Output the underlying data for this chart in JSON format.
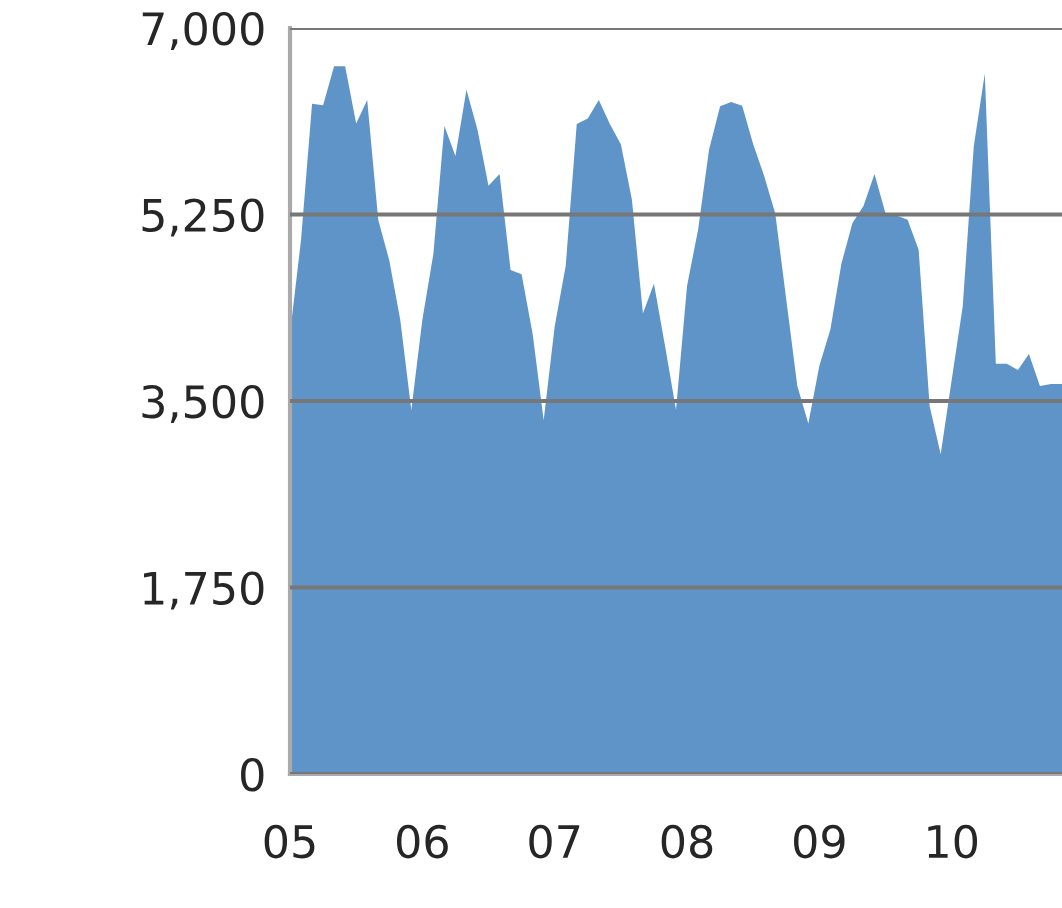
{
  "chart_data": {
    "type": "area",
    "color": "#5e94c8",
    "categories": [
      "05",
      null,
      null,
      null,
      null,
      null,
      null,
      null,
      null,
      null,
      null,
      null,
      "06",
      null,
      null,
      null,
      null,
      null,
      null,
      null,
      null,
      null,
      null,
      null,
      "07",
      null,
      null,
      null,
      null,
      null,
      null,
      null,
      null,
      null,
      null,
      null,
      "08",
      null,
      null,
      null,
      null,
      null,
      null,
      null,
      null,
      null,
      null,
      null,
      "09",
      null,
      null,
      null,
      null,
      null,
      null,
      null,
      null,
      null,
      null,
      null,
      "10",
      null,
      null,
      null,
      null,
      null,
      null,
      null,
      null,
      null,
      null
    ],
    "values": [
      4130,
      5010,
      6290,
      6275,
      6640,
      6640,
      6105,
      6325,
      5200,
      4820,
      4260,
      3415,
      4260,
      4880,
      6080,
      5800,
      6420,
      6045,
      5520,
      5630,
      4730,
      4690,
      4130,
      3320,
      4200,
      4770,
      6100,
      6150,
      6325,
      6100,
      5910,
      5390,
      4320,
      4600,
      4020,
      3415,
      4580,
      5105,
      5860,
      6265,
      6305,
      6270,
      5910,
      5610,
      5260,
      4450,
      3640,
      3290,
      3830,
      4170,
      4790,
      5170,
      5330,
      5630,
      5260,
      5240,
      5200,
      4920,
      3450,
      3000,
      3700,
      4390,
      5890,
      6570,
      3850,
      3850,
      3790,
      3940,
      3640,
      3660,
      3660
    ],
    "ylim": [
      0,
      7000
    ],
    "yticks": [
      {
        "value": 0,
        "label": "0"
      },
      {
        "value": 1750,
        "label": "1,750"
      },
      {
        "value": 3500,
        "label": "3,500"
      },
      {
        "value": 5250,
        "label": "5,250"
      },
      {
        "value": 7000,
        "label": "7,000"
      }
    ],
    "grid": "y"
  }
}
